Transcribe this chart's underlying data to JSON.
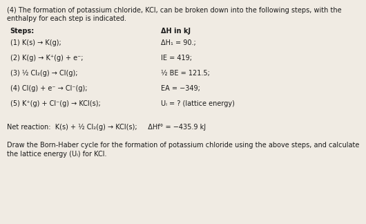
{
  "bg_color": "#f0ebe3",
  "text_color": "#1a1a1a",
  "title_line1": "(4) The formation of potassium chloride, KCl, can be broken down into the following steps, with the",
  "title_line2": "enthalpy for each step is indicated.",
  "col1_header": "Steps:",
  "col2_header": "ΔH in kJ",
  "steps": [
    [
      "(1) K(s) → K(g);",
      "ΔH₁ = 90.;"
    ],
    [
      "(2) K(g) → K⁺(g) + e⁻;",
      "IE = 419;"
    ],
    [
      "(3) ½ Cl₂(g) → Cl(g);",
      "½ BE = 121.5;"
    ],
    [
      "(4) Cl(g) + e⁻ → Cl⁻(g);",
      "EA = −349;"
    ],
    [
      "(5) K⁺(g) + Cl⁻(g) → KCl(s);",
      "Uₗ = ? (lattice energy)"
    ]
  ],
  "net_reaction": "Net reaction:  K(s) + ½ Cl₂(g) → KCl(s);     ΔHf° = −435.9 kJ",
  "instruction_line1": "Draw the Born-Haber cycle for the formation of potassium chloride using the above steps, and calculate",
  "instruction_line2": "the lattice energy (Uₗ) for KCl."
}
